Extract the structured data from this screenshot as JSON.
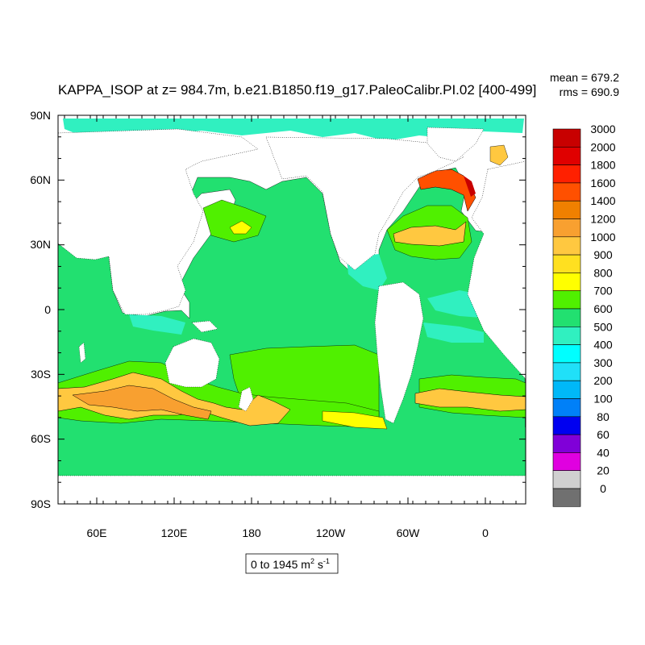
{
  "title": "KAPPA_ISOP at z= 984.7m, b.e21.B1850.f19_g17.PaleoCalibr.PI.02 [400-499]",
  "stats": {
    "mean": "mean = 679.2",
    "rms": "rms = 690.9"
  },
  "range_label": {
    "prefix": "0 to 1945 m",
    "exp1": "2",
    "mid": " s",
    "exp2": "-1"
  },
  "lat_labels": [
    "90N",
    "60N",
    "30N",
    "0",
    "30S",
    "60S",
    "90S"
  ],
  "lon_labels": [
    "60E",
    "120E",
    "180",
    "120W",
    "60W",
    "0"
  ],
  "colorbar": {
    "labels": [
      "3000",
      "2000",
      "1800",
      "1600",
      "1400",
      "1200",
      "1000",
      "900",
      "800",
      "700",
      "600",
      "500",
      "400",
      "300",
      "200",
      "100",
      "80",
      "60",
      "40",
      "20",
      "0"
    ],
    "colors": [
      "#c80000",
      "#e00000",
      "#ff2000",
      "#ff5000",
      "#f08000",
      "#f8a030",
      "#ffc840",
      "#ffe020",
      "#ffff00",
      "#50f000",
      "#22e070",
      "#30f0c0",
      "#00ffff",
      "#20e0f8",
      "#00b8f8",
      "#0080f8",
      "#0000f0",
      "#8000d8",
      "#e000e0",
      "#d0d0d0",
      "#707070"
    ]
  },
  "chart_data": {
    "type": "heatmap",
    "title": "KAPPA_ISOP at z= 984.7m, b.e21.B1850.f19_g17.PaleoCalibr.PI.02 [400-499]",
    "variable": "KAPPA_ISOP",
    "depth": "984.7m",
    "case": "b.e21.B1850.f19_g17.PaleoCalibr.PI.02",
    "years": "400-499",
    "units": "m2 s-1",
    "data_range": [
      0,
      1945
    ],
    "mean": 679.2,
    "rms": 690.9,
    "lat_ticks": [
      "90N",
      "60N",
      "30N",
      "0",
      "30S",
      "60S",
      "90S"
    ],
    "lon_ticks": [
      "60E",
      "120E",
      "180",
      "120W",
      "60W",
      "0"
    ],
    "contour_levels": [
      0,
      20,
      40,
      60,
      80,
      100,
      200,
      300,
      400,
      500,
      600,
      700,
      800,
      900,
      1000,
      1200,
      1400,
      1600,
      1800,
      2000,
      3000
    ],
    "projection": "cylindrical equidistant, centered near 150W"
  }
}
